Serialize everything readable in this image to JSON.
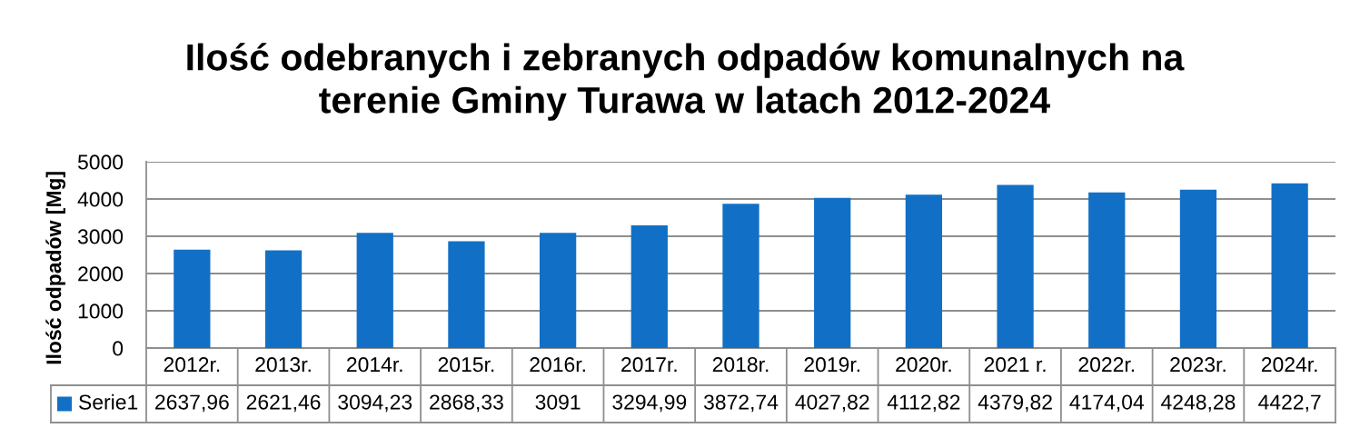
{
  "chart_data": {
    "type": "bar",
    "title": "Ilość odebranych i zebranych odpadów komunalnych na\nterenie Gminy Turawa w latach 2012-2024",
    "ylabel": "Ilość odpadów [Mg]",
    "categories": [
      "2012r.",
      "2013r.",
      "2014r.",
      "2015r.",
      "2016r.",
      "2017r.",
      "2018r.",
      "2019r.",
      "2020r.",
      "2021 r.",
      "2022r.",
      "2023r.",
      "2024r."
    ],
    "series": [
      {
        "name": "Serie1",
        "color": "#1170c6",
        "values": [
          2637.96,
          2621.46,
          3094.23,
          2868.33,
          3091,
          3294.99,
          3872.74,
          4027.82,
          4112.82,
          4379.82,
          4174.04,
          4248.28,
          4422.7
        ],
        "value_labels": [
          "2637,96",
          "2621,46",
          "3094,23",
          "2868,33",
          "3091",
          "3294,99",
          "3872,74",
          "4027,82",
          "4112,82",
          "4379,82",
          "4174,04",
          "4248,28",
          "4422,7"
        ]
      }
    ],
    "ylim": [
      0,
      5000
    ],
    "yticks": [
      0,
      1000,
      2000,
      3000,
      4000,
      5000
    ],
    "grid": "y",
    "legend": "bottom left"
  }
}
